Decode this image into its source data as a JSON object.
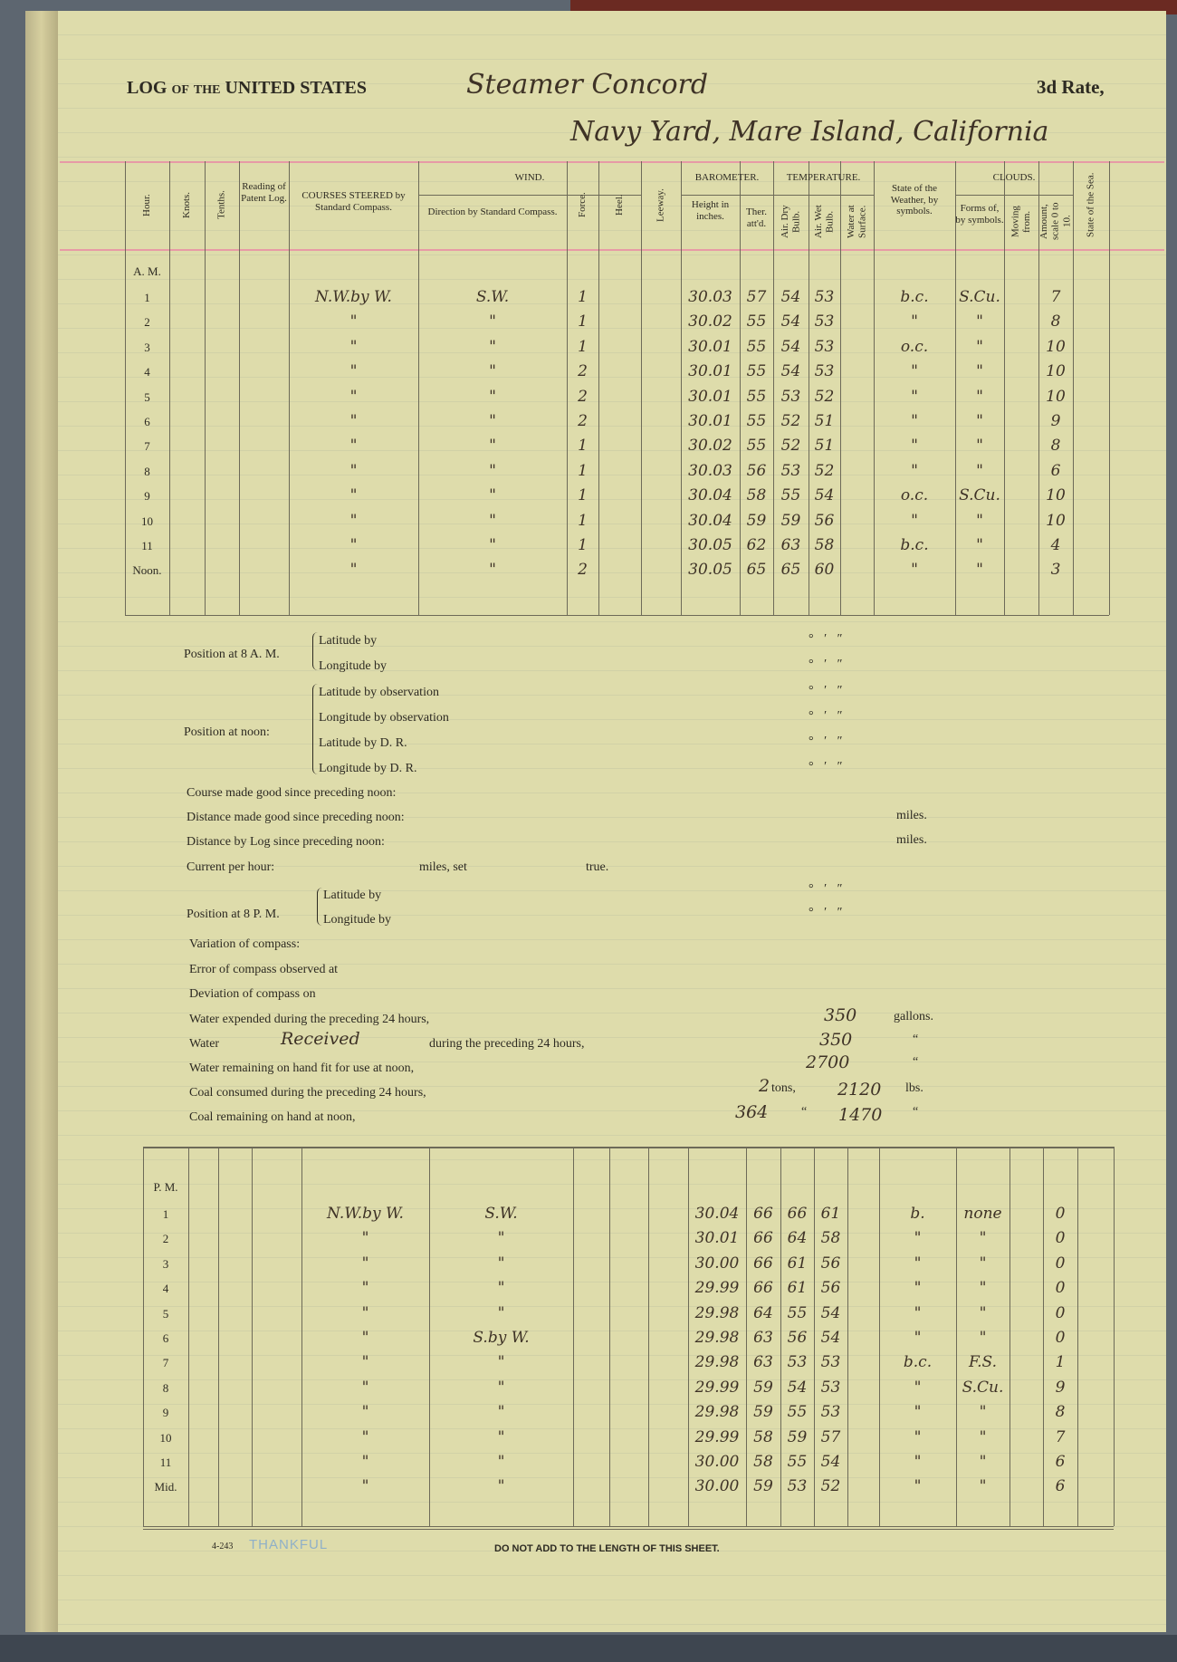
{
  "header": {
    "title": "LOG of the UNITED STATES",
    "vessel": "Steamer Concord",
    "rate": "3d Rate,",
    "location": "Navy Yard, Mare Island, California"
  },
  "columns": {
    "hour": "Hour.",
    "knots": "Knots.",
    "tenths": "Tenths.",
    "patent_log": "Reading of Patent Log.",
    "courses": "COURSES STEERED by Standard Compass.",
    "wind": "WIND.",
    "wind_direction": "Direction by Standard Compass.",
    "force": "Force.",
    "heel": "Heel.",
    "leeway": "Leeway.",
    "barometer": "BAROMETER.",
    "height": "Height in inches.",
    "ther": "Ther. att'd.",
    "temperature": "TEMPERATURE.",
    "dry": "Air. Dry Bulb.",
    "wet": "Air. Wet Bulb.",
    "water": "Water at Surface.",
    "weather": "State of the Weather, by symbols.",
    "clouds": "CLOUDS.",
    "forms": "Forms of, by symbols.",
    "moving": "Moving from.",
    "amount": "Amount, scale 0 to 10.",
    "sea": "State of the Sea."
  },
  "am": {
    "label": "A. M.",
    "rows": [
      {
        "hour": "1",
        "course": "N.W.by W.",
        "wind": "S.W.",
        "force": "1",
        "baro": "30.03",
        "ther": "57",
        "dry": "54",
        "wet": "53",
        "weather": "b.c.",
        "forms": "S.Cu.",
        "amount": "7"
      },
      {
        "hour": "2",
        "course": "\"",
        "wind": "\"",
        "force": "1",
        "baro": "30.02",
        "ther": "55",
        "dry": "54",
        "wet": "53",
        "weather": "\"",
        "forms": "\"",
        "amount": "8"
      },
      {
        "hour": "3",
        "course": "\"",
        "wind": "\"",
        "force": "1",
        "baro": "30.01",
        "ther": "55",
        "dry": "54",
        "wet": "53",
        "weather": "o.c.",
        "forms": "\"",
        "amount": "10"
      },
      {
        "hour": "4",
        "course": "\"",
        "wind": "\"",
        "force": "2",
        "baro": "30.01",
        "ther": "55",
        "dry": "54",
        "wet": "53",
        "weather": "\"",
        "forms": "\"",
        "amount": "10"
      },
      {
        "hour": "5",
        "course": "\"",
        "wind": "\"",
        "force": "2",
        "baro": "30.01",
        "ther": "55",
        "dry": "53",
        "wet": "52",
        "weather": "\"",
        "forms": "\"",
        "amount": "10"
      },
      {
        "hour": "6",
        "course": "\"",
        "wind": "\"",
        "force": "2",
        "baro": "30.01",
        "ther": "55",
        "dry": "52",
        "wet": "51",
        "weather": "\"",
        "forms": "\"",
        "amount": "9"
      },
      {
        "hour": "7",
        "course": "\"",
        "wind": "\"",
        "force": "1",
        "baro": "30.02",
        "ther": "55",
        "dry": "52",
        "wet": "51",
        "weather": "\"",
        "forms": "\"",
        "amount": "8"
      },
      {
        "hour": "8",
        "course": "\"",
        "wind": "\"",
        "force": "1",
        "baro": "30.03",
        "ther": "56",
        "dry": "53",
        "wet": "52",
        "weather": "\"",
        "forms": "\"",
        "amount": "6"
      },
      {
        "hour": "9",
        "course": "\"",
        "wind": "\"",
        "force": "1",
        "baro": "30.04",
        "ther": "58",
        "dry": "55",
        "wet": "54",
        "weather": "o.c.",
        "forms": "S.Cu.",
        "amount": "10"
      },
      {
        "hour": "10",
        "course": "\"",
        "wind": "\"",
        "force": "1",
        "baro": "30.04",
        "ther": "59",
        "dry": "59",
        "wet": "56",
        "weather": "\"",
        "forms": "\"",
        "amount": "10"
      },
      {
        "hour": "11",
        "course": "\"",
        "wind": "\"",
        "force": "1",
        "baro": "30.05",
        "ther": "62",
        "dry": "63",
        "wet": "58",
        "weather": "b.c.",
        "forms": "\"",
        "amount": "4"
      },
      {
        "hour": "Noon.",
        "course": "\"",
        "wind": "\"",
        "force": "2",
        "baro": "30.05",
        "ther": "65",
        "dry": "65",
        "wet": "60",
        "weather": "\"",
        "forms": "\"",
        "amount": "3"
      }
    ]
  },
  "mid": {
    "pos8am": "Position at 8 A. M.",
    "lat_by": "Latitude by",
    "lon_by": "Longitude by",
    "posnoon": "Position at noon:",
    "lat_obs": "Latitude by observation",
    "lon_obs": "Longitude by observation",
    "lat_dr": "Latitude by D. R.",
    "lon_dr": "Longitude by D. R.",
    "deg": "°   ′   ″",
    "course_good": "Course made good since preceding noon:",
    "dist_good": "Distance made good since preceding noon:",
    "dist_log": "Distance by Log since preceding noon:",
    "miles": "miles.",
    "current": "Current per hour:",
    "miles_set": "miles, set",
    "true": "true.",
    "pos8pm": "Position at 8 P. M.",
    "variation": "Variation of compass:",
    "error": "Error of compass observed at",
    "deviation": "Deviation of compass on",
    "water_exp": "Water expended during the preceding 24 hours,",
    "water_exp_val": "350",
    "gallons": "gallons.",
    "water": "Water",
    "water_recv": "Received",
    "water_recv_tail": "during the preceding 24 hours,",
    "water_recv_val": "350",
    "ditto": "“",
    "water_rem": "Water remaining on hand fit for use at noon,",
    "water_rem_val": "2700",
    "coal_cons": "Coal consumed during the preceding 24 hours,",
    "coal_cons_tons": "2",
    "tons": "tons,",
    "coal_cons_lbs": "2120",
    "lbs": "lbs.",
    "coal_rem": "Coal remaining on hand at noon,",
    "coal_rem_tons": "364",
    "coal_rem_lbs": "1470"
  },
  "pm": {
    "label": "P. M.",
    "rows": [
      {
        "hour": "1",
        "course": "N.W.by W.",
        "wind": "S.W.",
        "baro": "30.04",
        "ther": "66",
        "dry": "66",
        "wet": "61",
        "weather": "b.",
        "forms": "none",
        "amount": "0"
      },
      {
        "hour": "2",
        "course": "\"",
        "wind": "\"",
        "baro": "30.01",
        "ther": "66",
        "dry": "64",
        "wet": "58",
        "weather": "\"",
        "forms": "\"",
        "amount": "0"
      },
      {
        "hour": "3",
        "course": "\"",
        "wind": "\"",
        "baro": "30.00",
        "ther": "66",
        "dry": "61",
        "wet": "56",
        "weather": "\"",
        "forms": "\"",
        "amount": "0"
      },
      {
        "hour": "4",
        "course": "\"",
        "wind": "\"",
        "baro": "29.99",
        "ther": "66",
        "dry": "61",
        "wet": "56",
        "weather": "\"",
        "forms": "\"",
        "amount": "0"
      },
      {
        "hour": "5",
        "course": "\"",
        "wind": "\"",
        "baro": "29.98",
        "ther": "64",
        "dry": "55",
        "wet": "54",
        "weather": "\"",
        "forms": "\"",
        "amount": "0"
      },
      {
        "hour": "6",
        "course": "\"",
        "wind": "S.by W.",
        "baro": "29.98",
        "ther": "63",
        "dry": "56",
        "wet": "54",
        "weather": "\"",
        "forms": "\"",
        "amount": "0"
      },
      {
        "hour": "7",
        "course": "\"",
        "wind": "\"",
        "baro": "29.98",
        "ther": "63",
        "dry": "53",
        "wet": "53",
        "weather": "b.c.",
        "forms": "F.S.",
        "amount": "1"
      },
      {
        "hour": "8",
        "course": "\"",
        "wind": "\"",
        "baro": "29.99",
        "ther": "59",
        "dry": "54",
        "wet": "53",
        "weather": "\"",
        "forms": "S.Cu.",
        "amount": "9"
      },
      {
        "hour": "9",
        "course": "\"",
        "wind": "\"",
        "baro": "29.98",
        "ther": "59",
        "dry": "55",
        "wet": "53",
        "weather": "\"",
        "forms": "\"",
        "amount": "8"
      },
      {
        "hour": "10",
        "course": "\"",
        "wind": "\"",
        "baro": "29.99",
        "ther": "58",
        "dry": "59",
        "wet": "57",
        "weather": "\"",
        "forms": "\"",
        "amount": "7"
      },
      {
        "hour": "11",
        "course": "\"",
        "wind": "\"",
        "baro": "30.00",
        "ther": "58",
        "dry": "55",
        "wet": "54",
        "weather": "\"",
        "forms": "\"",
        "amount": "6"
      },
      {
        "hour": "Mid.",
        "course": "\"",
        "wind": "\"",
        "baro": "30.00",
        "ther": "59",
        "dry": "53",
        "wet": "52",
        "weather": "\"",
        "forms": "\"",
        "amount": "6"
      }
    ]
  },
  "footer": {
    "form_no": "4-243",
    "stamp": "THANKFUL",
    "notice": "DO NOT ADD TO THE LENGTH OF THIS SHEET."
  }
}
